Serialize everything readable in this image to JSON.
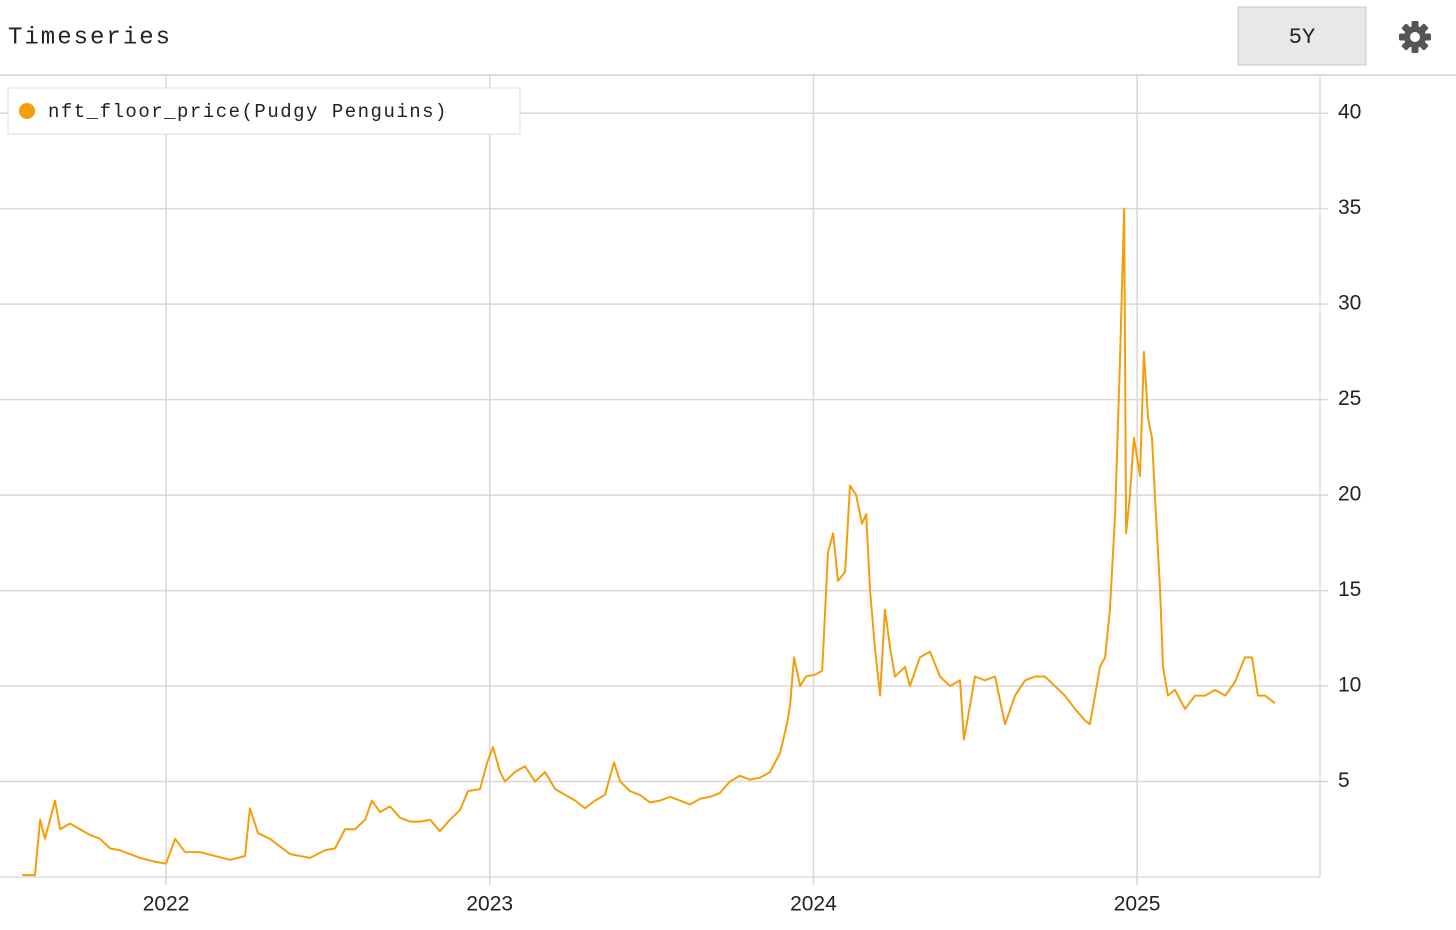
{
  "header": {
    "title": "Timeseries",
    "range_button": "5Y"
  },
  "chart_data": {
    "type": "line",
    "x": [
      2021.555,
      2021.595,
      2021.611,
      2021.626,
      2021.657,
      2021.673,
      2021.703,
      2021.734,
      2021.765,
      2021.796,
      2021.827,
      2021.858,
      2021.889,
      2021.92,
      2021.966,
      2022.0,
      2022.028,
      2022.059,
      2022.105,
      2022.151,
      2022.198,
      2022.244,
      2022.259,
      2022.284,
      2022.321,
      2022.352,
      2022.383,
      2022.445,
      2022.491,
      2022.522,
      2022.553,
      2022.584,
      2022.615,
      2022.636,
      2022.661,
      2022.692,
      2022.723,
      2022.754,
      2022.785,
      2022.816,
      2022.846,
      2022.877,
      2022.908,
      2022.933,
      2022.97,
      2022.992,
      2023.01,
      2023.032,
      2023.047,
      2023.078,
      2023.109,
      2023.14,
      2023.171,
      2023.202,
      2023.233,
      2023.264,
      2023.294,
      2023.325,
      2023.356,
      2023.384,
      2023.403,
      2023.433,
      2023.464,
      2023.495,
      2023.526,
      2023.557,
      2023.588,
      2023.619,
      2023.65,
      2023.681,
      2023.711,
      2023.742,
      2023.773,
      2023.804,
      2023.835,
      2023.866,
      2023.897,
      2023.918,
      2023.928,
      2023.94,
      2023.959,
      2023.977,
      2024.005,
      2024.027,
      2024.045,
      2024.061,
      2024.076,
      2024.098,
      2024.113,
      2024.132,
      2024.15,
      2024.163,
      2024.175,
      2024.19,
      2024.206,
      2024.221,
      2024.237,
      2024.252,
      2024.283,
      2024.298,
      2024.329,
      2024.36,
      2024.391,
      2024.422,
      2024.453,
      2024.465,
      2024.484,
      2024.499,
      2024.53,
      2024.561,
      2024.592,
      2024.623,
      2024.654,
      2024.685,
      2024.715,
      2024.746,
      2024.777,
      2024.808,
      2024.839,
      2024.854,
      2024.87,
      2024.885,
      2024.901,
      2024.916,
      2024.932,
      2024.947,
      2024.96,
      2024.966,
      2024.978,
      2024.99,
      2025.009,
      2025.021,
      2025.034,
      2025.046,
      2025.058,
      2025.071,
      2025.08,
      2025.095,
      2025.117,
      2025.148,
      2025.179,
      2025.21,
      2025.241,
      2025.272,
      2025.302,
      2025.333,
      2025.355,
      2025.373,
      2025.395,
      2025.426
    ],
    "series": [
      {
        "name": "nft_floor_price(Pudgy Penguins)",
        "color": "#f59e0b",
        "values": [
          0.1,
          0.1,
          3,
          2,
          4,
          2.5,
          2.8,
          2.5,
          2.2,
          2,
          1.5,
          1.4,
          1.2,
          1.0,
          0.8,
          0.7,
          2,
          1.3,
          1.3,
          1.1,
          0.9,
          1.1,
          3.6,
          2.3,
          2.0,
          1.6,
          1.2,
          1.0,
          1.4,
          1.5,
          2.5,
          2.5,
          3.0,
          4,
          3.4,
          3.7,
          3.1,
          2.9,
          2.9,
          3.0,
          2.4,
          3.0,
          3.5,
          4.5,
          4.6,
          6,
          6.8,
          5.5,
          5.0,
          5.5,
          5.8,
          5.0,
          5.5,
          4.6,
          4.3,
          4.0,
          3.6,
          4.0,
          4.3,
          6,
          5.0,
          4.5,
          4.3,
          3.9,
          4.0,
          4.2,
          4.0,
          3.8,
          4.1,
          4.2,
          4.4,
          5.0,
          5.3,
          5.1,
          5.2,
          5.5,
          6.5,
          8,
          9,
          11.5,
          10,
          10.5,
          10.6,
          10.8,
          17,
          18,
          15.5,
          16,
          20.5,
          20,
          18.5,
          19,
          15,
          12,
          9.5,
          14,
          12,
          10.5,
          11,
          10,
          11.5,
          11.8,
          10.5,
          10,
          10.3,
          7.2,
          9,
          10.5,
          10.3,
          10.5,
          8,
          9.5,
          10.3,
          10.5,
          10.5,
          10,
          9.5,
          8.8,
          8.2,
          8,
          9.5,
          11,
          11.5,
          14,
          19,
          27,
          35,
          18,
          20,
          23,
          21,
          27.5,
          24,
          23,
          19,
          15,
          11,
          9.5,
          9.8,
          8.8,
          9.5,
          9.5,
          9.8,
          9.5,
          10.2,
          11.5,
          11.5,
          9.5,
          9.5,
          9.1
        ]
      }
    ],
    "xlim": [
      2021.487,
      2025.565
    ],
    "xticks": [
      2022,
      2023,
      2024,
      2025
    ],
    "ylim": [
      0,
      42
    ],
    "yticks": [
      5,
      10,
      15,
      20,
      25,
      30,
      35,
      40
    ],
    "grid": true,
    "legend": "top-left"
  }
}
